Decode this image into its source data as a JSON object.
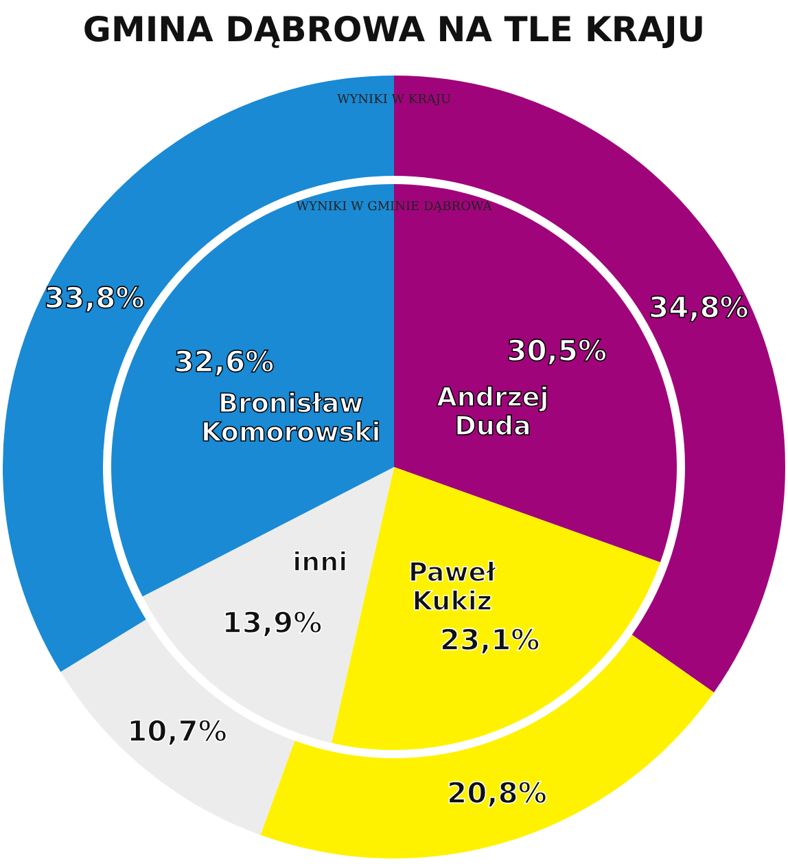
{
  "chart_data": {
    "type": "pie",
    "title": "GMINA DĄBROWA NA TLE KRAJU",
    "categories": [
      "Andrzej Duda",
      "Paweł Kukiz",
      "inni",
      "Bronisław Komorowski"
    ],
    "colors": [
      "#a0047a",
      "#fff200",
      "#ececec",
      "#1a8ad4"
    ],
    "series": [
      {
        "name": "WYNIKI W KRAJU",
        "type": "donut",
        "values": [
          34.8,
          20.8,
          10.7,
          33.8
        ],
        "value_labels": [
          "34,8%",
          "20,8%",
          "10,7%",
          "33,8%"
        ]
      },
      {
        "name": "WYNIKI W GMINIE DĄBROWA",
        "type": "pie",
        "values": [
          30.5,
          23.1,
          13.9,
          32.6
        ],
        "value_labels": [
          "30,5%",
          "23,1%",
          "13,9%",
          "32,6%"
        ]
      }
    ]
  }
}
